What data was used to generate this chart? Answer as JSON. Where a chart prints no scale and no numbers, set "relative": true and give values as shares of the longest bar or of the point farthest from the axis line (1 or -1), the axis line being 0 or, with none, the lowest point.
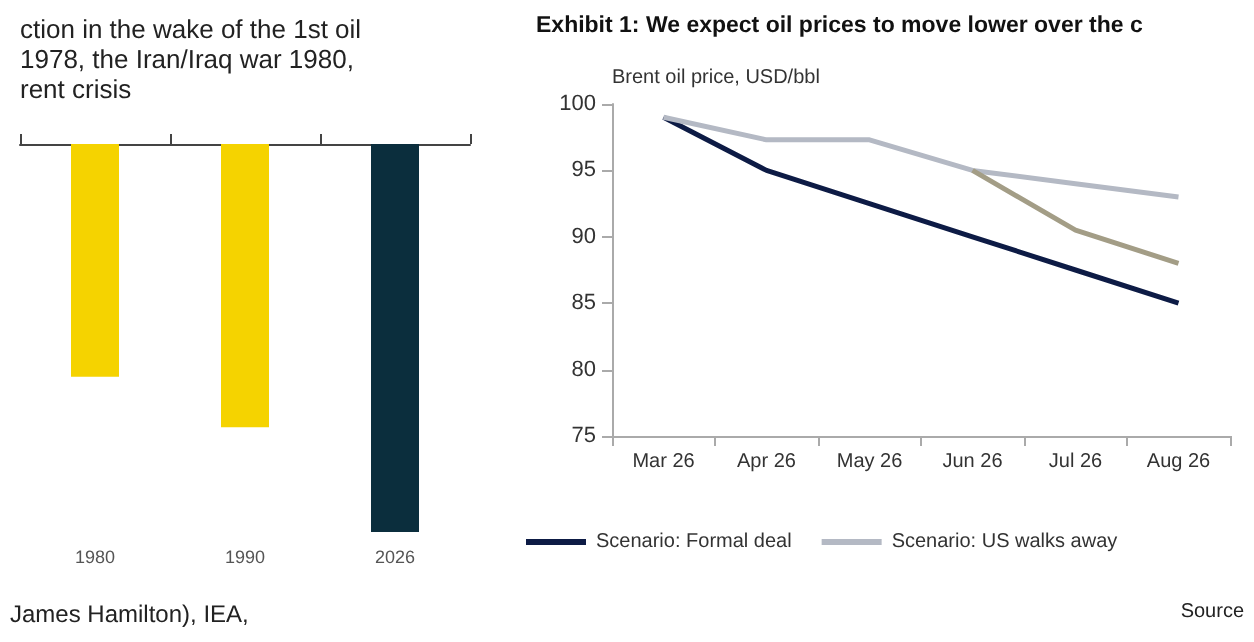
{
  "chart_data": [
    {
      "type": "bar",
      "title": "ction in the wake of the 1st oil\n1978, the Iran/Iraq war 1980,\nrent crisis",
      "relative": true,
      "categories": [
        "1980",
        "1990",
        "2026"
      ],
      "values": [
        -0.6,
        -0.73,
        -1
      ],
      "colors": [
        "#f5d300",
        "#f5d300",
        "#0b2e3d"
      ],
      "annotations": [
        "James Hamilton), IEA,"
      ]
    },
    {
      "type": "line",
      "title": "Exhibit 1: We expect oil prices to move lower over the c",
      "ylabel": "Brent oil price, USD/bbl",
      "categories": [
        "Mar 26",
        "Apr 26",
        "May 26",
        "Jun 26",
        "Jul 26",
        "Aug 26"
      ],
      "ylim": [
        75,
        100
      ],
      "yticks": [
        75,
        80,
        85,
        90,
        95,
        100
      ],
      "legend": "bottom",
      "annotations": [
        "Source"
      ],
      "series": [
        {
          "name": "Scenario: Formal deal",
          "color": "#0d1b45",
          "values": [
            99,
            95,
            92.5,
            90,
            87.5,
            85
          ]
        },
        {
          "name": "Scenario: US walks away",
          "color": "#b4b9c4",
          "values": [
            99,
            97.3,
            97.3,
            95,
            94,
            93
          ]
        },
        {
          "color": "#a39d86",
          "values": [
            null,
            null,
            null,
            95,
            90.5,
            88
          ]
        }
      ]
    }
  ]
}
